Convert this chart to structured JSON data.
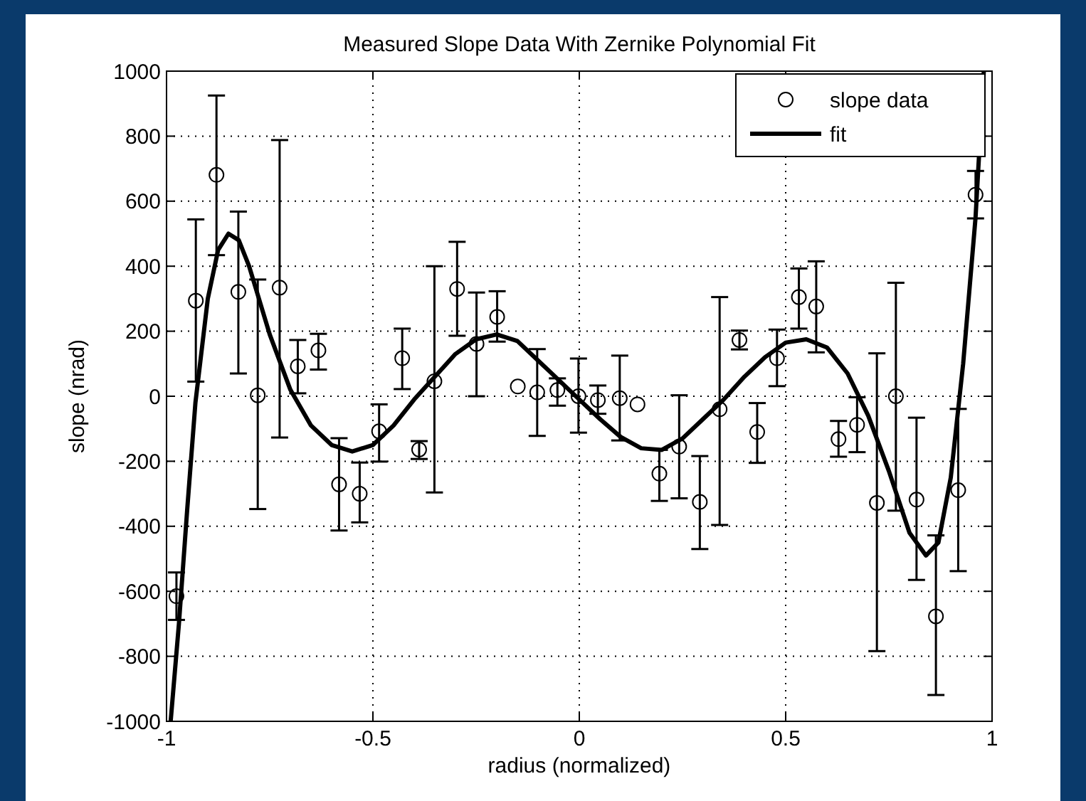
{
  "chart_data": {
    "type": "scatter",
    "title": "Measured Slope Data With Zernike Polynomial Fit",
    "xlabel": "radius (normalized)",
    "ylabel": "slope (nrad)",
    "xlim": [
      -1,
      1
    ],
    "ylim": [
      -1000,
      1000
    ],
    "xticks": [
      -1,
      -0.5,
      0,
      0.5,
      1
    ],
    "yticks": [
      -1000,
      -800,
      -600,
      -400,
      -200,
      0,
      200,
      400,
      600,
      800,
      1000
    ],
    "grid": true,
    "legend": "top right",
    "series": [
      {
        "name": "slope data",
        "color": "#000000",
        "marker": "circle",
        "x": [
          -0.976,
          -0.929,
          -0.879,
          -0.826,
          -0.779,
          -0.726,
          -0.682,
          -0.632,
          -0.582,
          -0.532,
          -0.485,
          -0.429,
          -0.388,
          -0.351,
          -0.296,
          -0.249,
          -0.199,
          -0.149,
          -0.102,
          -0.053,
          -0.002,
          0.045,
          0.098,
          0.141,
          0.194,
          0.242,
          0.292,
          0.34,
          0.388,
          0.431,
          0.479,
          0.532,
          0.574,
          0.628,
          0.673,
          0.721,
          0.767,
          0.817,
          0.864,
          0.918,
          0.96
        ],
        "values": [
          -615,
          294,
          681,
          321,
          3,
          334,
          92,
          141,
          -271,
          -300,
          -108,
          117,
          -164,
          46,
          330,
          161,
          244,
          30,
          12,
          19,
          0,
          -12,
          -6,
          -25,
          -238,
          -155,
          -325,
          -40,
          173,
          -110,
          117,
          305,
          276,
          -132,
          -88,
          -328,
          0,
          -318,
          -677,
          -289,
          620
        ],
        "errors": [
          [
            -688,
            -542
          ],
          [
            45,
            544
          ],
          [
            434,
            925
          ],
          [
            70,
            568
          ],
          [
            -347,
            359
          ],
          [
            -127,
            788
          ],
          [
            9,
            173
          ],
          [
            82,
            192
          ],
          [
            -413,
            -129
          ],
          [
            -388,
            -204
          ],
          [
            -201,
            -25
          ],
          [
            22,
            208
          ],
          [
            -193,
            -138
          ],
          [
            -296,
            400
          ],
          [
            186,
            475
          ],
          [
            0,
            319
          ],
          [
            168,
            323
          ],
          null,
          [
            -122,
            145
          ],
          [
            -29,
            55
          ],
          [
            -112,
            116
          ],
          [
            -54,
            33
          ],
          [
            -136,
            125
          ],
          null,
          [
            -322,
            -165
          ],
          [
            -314,
            3
          ],
          [
            -470,
            -184
          ],
          [
            -396,
            305
          ],
          [
            144,
            202
          ],
          [
            -205,
            -21
          ],
          [
            31,
            205
          ],
          [
            208,
            393
          ],
          [
            135,
            415
          ],
          [
            -186,
            -76
          ],
          [
            -172,
            -3
          ],
          [
            -784,
            132
          ],
          [
            -352,
            349
          ],
          [
            -565,
            -66
          ],
          [
            -919,
            -428
          ],
          [
            -538,
            -39
          ],
          [
            547,
            693
          ]
        ]
      },
      {
        "name": "fit",
        "type": "line",
        "color": "#000000",
        "line_style": "solid",
        "x": [
          -0.99,
          -0.97,
          -0.95,
          -0.93,
          -0.9,
          -0.875,
          -0.85,
          -0.825,
          -0.8,
          -0.75,
          -0.7,
          -0.65,
          -0.6,
          -0.55,
          -0.5,
          -0.45,
          -0.4,
          -0.35,
          -0.3,
          -0.25,
          -0.2,
          -0.15,
          -0.1,
          -0.05,
          0,
          0.05,
          0.1,
          0.15,
          0.2,
          0.25,
          0.3,
          0.35,
          0.4,
          0.45,
          0.5,
          0.55,
          0.6,
          0.65,
          0.7,
          0.75,
          0.8,
          0.84,
          0.87,
          0.9,
          0.93,
          0.96,
          0.98
        ],
        "values": [
          -1000,
          -700,
          -350,
          -20,
          300,
          450,
          500,
          480,
          400,
          190,
          20,
          -90,
          -150,
          -170,
          -150,
          -90,
          -10,
          60,
          130,
          175,
          190,
          170,
          110,
          50,
          -10,
          -70,
          -125,
          -160,
          -165,
          -130,
          -70,
          -10,
          60,
          120,
          165,
          175,
          150,
          70,
          -60,
          -230,
          -420,
          -490,
          -450,
          -250,
          100,
          550,
          1000
        ]
      }
    ]
  }
}
